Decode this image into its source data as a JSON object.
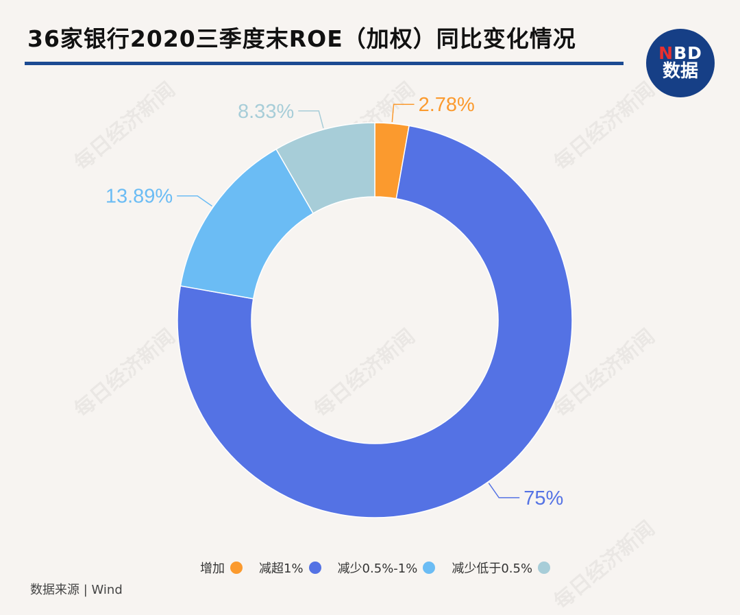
{
  "header": {
    "title": "36家银行2020三季度末ROE（加权）同比变化情况",
    "logo_top_n": "N",
    "logo_top_rest": "BD",
    "logo_bottom": "数据"
  },
  "watermark_text": "每日经济新闻",
  "source": "数据来源 | Wind",
  "chart_data": {
    "type": "pie",
    "variant": "donut",
    "title": "36家银行2020三季度末ROE（加权）同比变化情况",
    "categories": [
      "增加",
      "减超1%",
      "减少0.5%-1%",
      "减少低于0.5%"
    ],
    "values": [
      2.78,
      75,
      13.89,
      8.33
    ],
    "labels": [
      "2.78%",
      "75%",
      "13.89%",
      "8.33%"
    ],
    "colors": [
      "#fb9a2e",
      "#5472e4",
      "#6bbcf4",
      "#a7cdd8"
    ],
    "legend_position": "bottom-center"
  }
}
